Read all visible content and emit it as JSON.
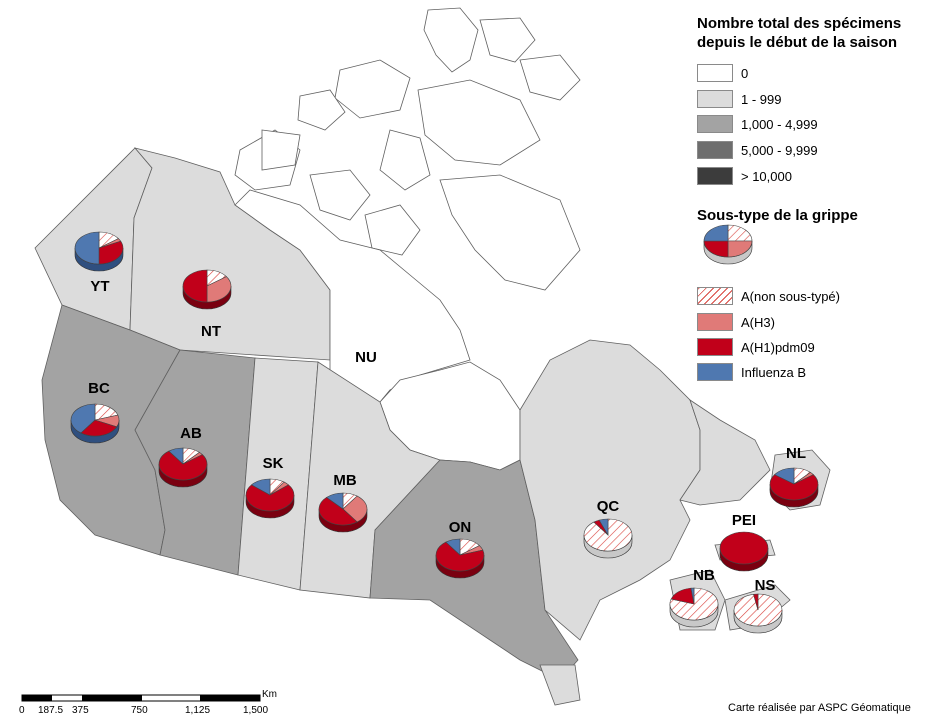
{
  "legend_count": {
    "title_line1": "Nombre total des spécimens",
    "title_line2": "depuis le début de la saison",
    "classes": [
      {
        "label": "0",
        "color": "#ffffff"
      },
      {
        "label": "1 - 999",
        "color": "#dcdcdc"
      },
      {
        "label": "1,000 - 4,999",
        "color": "#a3a3a3"
      },
      {
        "label": "5,000 - 9,999",
        "color": "#6e6e6e"
      },
      {
        "label": "> 10,000",
        "color": "#3c3c3c"
      }
    ]
  },
  "legend_subtype": {
    "title": "Sous-type de la grippe",
    "items": [
      {
        "label": "A(non sous-typé)",
        "color": "#ffffff",
        "pattern": "red-hatch"
      },
      {
        "label": "A(H3)",
        "color": "#e07a78"
      },
      {
        "label": "A(H1)pdm09",
        "color": "#c1001a"
      },
      {
        "label": "Influenza B",
        "color": "#4f78b0"
      }
    ]
  },
  "regions": [
    {
      "code": "YT",
      "count_class": "1 - 999",
      "pie": {
        "A(non sous-typé)": 0.15,
        "A(H3)": 0.03,
        "A(H1)pdm09": 0.32,
        "Influenza B": 0.5
      }
    },
    {
      "code": "NT",
      "count_class": "1 - 999",
      "pie": {
        "A(non sous-typé)": 0.15,
        "A(H3)": 0.35,
        "A(H1)pdm09": 0.5,
        "Influenza B": 0.0
      }
    },
    {
      "code": "NU",
      "count_class": "0",
      "pie": null
    },
    {
      "code": "BC",
      "count_class": "1,000 - 4,999",
      "pie": {
        "A(non sous-typé)": 0.2,
        "A(H3)": 0.12,
        "A(H1)pdm09": 0.28,
        "Influenza B": 0.4
      }
    },
    {
      "code": "AB",
      "count_class": "1,000 - 4,999",
      "pie": {
        "A(non sous-typé)": 0.12,
        "A(H3)": 0.03,
        "A(H1)pdm09": 0.75,
        "Influenza B": 0.1
      }
    },
    {
      "code": "SK",
      "count_class": "1 - 999",
      "pie": {
        "A(non sous-typé)": 0.1,
        "A(H3)": 0.04,
        "A(H1)pdm09": 0.72,
        "Influenza B": 0.14
      }
    },
    {
      "code": "MB",
      "count_class": "1 - 999",
      "pie": {
        "A(non sous-typé)": 0.1,
        "A(H3)": 0.3,
        "A(H1)pdm09": 0.48,
        "Influenza B": 0.12
      }
    },
    {
      "code": "ON",
      "count_class": "1,000 - 4,999",
      "pie": {
        "A(non sous-typé)": 0.15,
        "A(H3)": 0.05,
        "A(H1)pdm09": 0.7,
        "Influenza B": 0.1
      }
    },
    {
      "code": "QC",
      "count_class": "1 - 999",
      "pie": {
        "A(non sous-typé)": 0.9,
        "A(H3)": 0.0,
        "A(H1)pdm09": 0.04,
        "Influenza B": 0.06
      }
    },
    {
      "code": "NL",
      "count_class": "1 - 999",
      "pie": {
        "A(non sous-typé)": 0.12,
        "A(H3)": 0.03,
        "A(H1)pdm09": 0.7,
        "Influenza B": 0.15
      }
    },
    {
      "code": "PEI",
      "count_class": "1 - 999",
      "pie": {
        "A(non sous-typé)": 0.0,
        "A(H3)": 0.0,
        "A(H1)pdm09": 1.0,
        "Influenza B": 0.0
      }
    },
    {
      "code": "NB",
      "count_class": "1 - 999",
      "pie": {
        "A(non sous-typé)": 0.8,
        "A(H3)": 0.0,
        "A(H1)pdm09": 0.18,
        "Influenza B": 0.02
      }
    },
    {
      "code": "NS",
      "count_class": "1 - 999",
      "pie": {
        "A(non sous-typé)": 0.97,
        "A(H3)": 0.0,
        "A(H1)pdm09": 0.03,
        "Influenza B": 0.0
      }
    }
  ],
  "scale_bar": {
    "unit": "Km",
    "ticks": [
      "0",
      "187.5",
      "375",
      "750",
      "1,125",
      "1,500"
    ]
  },
  "credit": "Carte réalisée par ASPC Géomatique"
}
